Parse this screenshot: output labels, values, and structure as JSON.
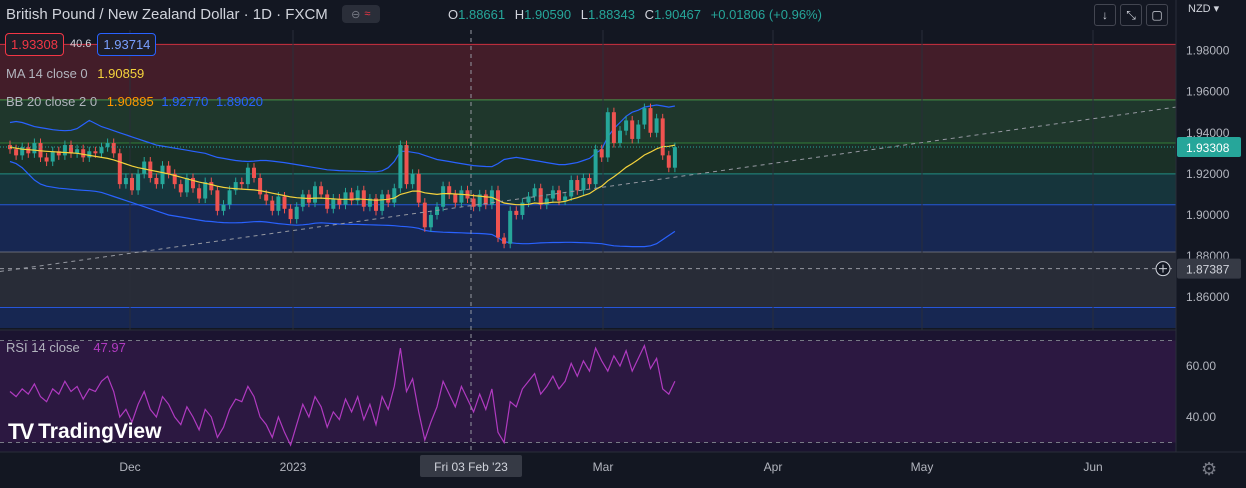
{
  "header": {
    "title": "British Pound / New Zealand Dollar · 1D · FXCM",
    "toggle_icon": "wave-icon",
    "ohlc": {
      "o_label": "O",
      "o": "1.88661",
      "h_label": "H",
      "h": "1.90590",
      "l_label": "L",
      "l": "1.88343",
      "c_label": "C",
      "c": "1.90467",
      "change": "+0.01806 (+0.96%)"
    }
  },
  "spread": {
    "bid": "1.93308",
    "spread": "40.6",
    "ask": "1.93714"
  },
  "indicators": {
    "ma": {
      "name": "MA 14 close 0",
      "value": "1.90859"
    },
    "bb": {
      "name": "BB 20 close 2 0",
      "basis": "1.90895",
      "upper": "1.92770",
      "lower": "1.89020"
    },
    "rsi": {
      "name": "RSI 14 close",
      "value": "47.97"
    }
  },
  "toolbar": {
    "down_icon": "↓",
    "expand_icon": "⤡",
    "fullscreen_icon": "▢"
  },
  "currency": "NZD",
  "logo": {
    "mark": "TV",
    "text": "TradingView"
  },
  "crosshair": {
    "date_label": "Fri 03 Feb '23",
    "price_label": "1.87387",
    "add_icon": "plus-circle-icon"
  },
  "current_price_label": "1.93308",
  "colors": {
    "up": "#26a69a",
    "down": "#ef5350",
    "ma": "#f5d33c",
    "bb": "#2962ff",
    "rsi": "#b03ac0",
    "bg": "#131722"
  },
  "chart_data": {
    "type": "candlestick",
    "price_ticks": [
      "1.98000",
      "1.96000",
      "1.94000",
      "1.92000",
      "1.90000",
      "1.88000",
      "1.86000"
    ],
    "rsi_ticks": [
      "60.00",
      "40.00"
    ],
    "x_ticks": [
      "Dec",
      "2023",
      "Mar",
      "Apr",
      "May",
      "Jun"
    ],
    "zones": [
      {
        "from": 1.956,
        "to": 1.983,
        "color": "#f23645"
      },
      {
        "from": 1.935,
        "to": 1.956,
        "color": "#4caf50"
      },
      {
        "from": 1.92,
        "to": 1.935,
        "color": "#388e3c"
      },
      {
        "from": 1.905,
        "to": 1.92,
        "color": "#26a69a"
      },
      {
        "from": 1.882,
        "to": 1.905,
        "color": "#2962ff"
      },
      {
        "from": 1.855,
        "to": 1.882,
        "color": "#787b86"
      },
      {
        "from": 1.845,
        "to": 1.855,
        "color": "#2962ff"
      }
    ],
    "close": [
      1.932,
      1.929,
      1.933,
      1.93,
      1.935,
      1.928,
      1.926,
      1.931,
      1.929,
      1.934,
      1.93,
      1.932,
      1.928,
      1.931,
      1.93,
      1.933,
      1.935,
      1.93,
      1.915,
      1.918,
      1.912,
      1.92,
      1.926,
      1.918,
      1.915,
      1.924,
      1.92,
      1.915,
      1.911,
      1.918,
      1.913,
      1.908,
      1.916,
      1.912,
      1.902,
      1.905,
      1.912,
      1.916,
      1.915,
      1.923,
      1.918,
      1.91,
      1.907,
      1.902,
      1.909,
      1.903,
      1.898,
      1.904,
      1.91,
      1.906,
      1.914,
      1.91,
      1.903,
      1.908,
      1.905,
      1.911,
      1.907,
      1.912,
      1.904,
      1.908,
      1.902,
      1.91,
      1.906,
      1.913,
      1.934,
      1.915,
      1.92,
      1.906,
      1.894,
      1.9,
      1.904,
      1.914,
      1.91,
      1.906,
      1.912,
      1.908,
      1.904,
      1.91,
      1.905,
      1.912,
      1.889,
      1.886,
      1.902,
      1.9,
      1.906,
      1.909,
      1.913,
      1.905,
      1.908,
      1.912,
      1.907,
      1.909,
      1.917,
      1.912,
      1.918,
      1.915,
      1.932,
      1.928,
      1.95,
      1.935,
      1.941,
      1.946,
      1.937,
      1.944,
      1.952,
      1.94,
      1.947,
      1.929,
      1.923,
      1.933
    ],
    "ma": [
      1.933,
      1.9325,
      1.932,
      1.9318,
      1.9315,
      1.9312,
      1.931,
      1.9308,
      1.9306,
      1.9304,
      1.9302,
      1.93,
      1.9295,
      1.929,
      1.9285,
      1.928,
      1.9275,
      1.9268,
      1.9258,
      1.9248,
      1.9238,
      1.923,
      1.9224,
      1.9218,
      1.9212,
      1.9206,
      1.92,
      1.9192,
      1.9184,
      1.9176,
      1.9168,
      1.916,
      1.9154,
      1.9148,
      1.914,
      1.9134,
      1.913,
      1.9128,
      1.9126,
      1.9124,
      1.9122,
      1.9118,
      1.9112,
      1.9106,
      1.91,
      1.9094,
      1.9088,
      1.9084,
      1.9082,
      1.908,
      1.9082,
      1.9082,
      1.908,
      1.9078,
      1.9076,
      1.9076,
      1.9076,
      1.9078,
      1.9076,
      1.9074,
      1.9072,
      1.9074,
      1.9076,
      1.9082,
      1.91,
      1.9108,
      1.9116,
      1.9116,
      1.9108,
      1.9104,
      1.91,
      1.9104,
      1.9104,
      1.9102,
      1.91,
      1.9098,
      1.9094,
      1.9092,
      1.9088,
      1.9086,
      1.9072,
      1.9058,
      1.9054,
      1.905,
      1.905,
      1.9052,
      1.9058,
      1.9056,
      1.9058,
      1.9062,
      1.9062,
      1.9066,
      1.9076,
      1.9084,
      1.9094,
      1.9104,
      1.9124,
      1.914,
      1.9166,
      1.9186,
      1.9208,
      1.9232,
      1.925,
      1.927,
      1.9292,
      1.9306,
      1.9322,
      1.9332,
      1.9334,
      1.934
    ],
    "bb_upper": [
      1.945,
      1.9455,
      1.945,
      1.944,
      1.943,
      1.9425,
      1.942,
      1.9415,
      1.9412,
      1.941,
      1.9412,
      1.942,
      1.944,
      1.946,
      1.9445,
      1.943,
      1.942,
      1.941,
      1.94,
      1.939,
      1.938,
      1.937,
      1.936,
      1.935,
      1.934,
      1.9335,
      1.933,
      1.9325,
      1.932,
      1.9315,
      1.931,
      1.9305,
      1.93,
      1.929,
      1.928,
      1.9275,
      1.927,
      1.9265,
      1.9262,
      1.926,
      1.9262,
      1.9265,
      1.9265,
      1.9262,
      1.9258,
      1.9255,
      1.925,
      1.9245,
      1.924,
      1.9235,
      1.923,
      1.9225,
      1.922,
      1.9218,
      1.9216,
      1.9215,
      1.9214,
      1.9213,
      1.9212,
      1.921,
      1.921,
      1.9215,
      1.923,
      1.926,
      1.931,
      1.931,
      1.9305,
      1.93,
      1.929,
      1.928,
      1.927,
      1.9265,
      1.926,
      1.9255,
      1.925,
      1.9245,
      1.924,
      1.9238,
      1.9236,
      1.9235,
      1.925,
      1.927,
      1.9275,
      1.928,
      1.9275,
      1.927,
      1.9265,
      1.926,
      1.9255,
      1.925,
      1.9245,
      1.9245,
      1.925,
      1.9255,
      1.9265,
      1.9275,
      1.93,
      1.932,
      1.938,
      1.942,
      1.945,
      1.948,
      1.95,
      1.951,
      1.9525,
      1.953,
      1.9535,
      1.953,
      1.9525,
      1.953
    ],
    "bb_lower": [
      1.926,
      1.925,
      1.923,
      1.92,
      1.917,
      1.915,
      1.914,
      1.9135,
      1.913,
      1.9128,
      1.9125,
      1.9122,
      1.912,
      1.9118,
      1.9115,
      1.911,
      1.91,
      1.909,
      1.908,
      1.907,
      1.906,
      1.905,
      1.904,
      1.903,
      1.902,
      1.901,
      1.9,
      1.8995,
      1.899,
      1.8985,
      1.898,
      1.8975,
      1.897,
      1.8968,
      1.8965,
      1.8963,
      1.8962,
      1.8962,
      1.8963,
      1.8965,
      1.8967,
      1.8968,
      1.8966,
      1.8962,
      1.8958,
      1.8955,
      1.8952,
      1.895,
      1.8952,
      1.8955,
      1.896,
      1.8962,
      1.896,
      1.8958,
      1.8956,
      1.8955,
      1.8954,
      1.8954,
      1.8953,
      1.8952,
      1.8951,
      1.895,
      1.8949,
      1.8948,
      1.8945,
      1.8943,
      1.894,
      1.8935,
      1.8925,
      1.892,
      1.8918,
      1.8916,
      1.8915,
      1.8914,
      1.8913,
      1.8912,
      1.8911,
      1.891,
      1.8908,
      1.8905,
      1.889,
      1.887,
      1.8865,
      1.8862,
      1.886,
      1.886,
      1.8862,
      1.8864,
      1.8865,
      1.8866,
      1.8866,
      1.8867,
      1.8867,
      1.8866,
      1.8865,
      1.8864,
      1.8862,
      1.886,
      1.8855,
      1.885,
      1.8848,
      1.8847,
      1.8846,
      1.8846,
      1.8846,
      1.885,
      1.886,
      1.888,
      1.89,
      1.892
    ],
    "rsi": [
      50,
      48,
      51,
      49,
      53,
      48,
      46,
      51,
      49,
      54,
      50,
      52,
      47,
      51,
      50,
      54,
      56,
      50,
      40,
      43,
      38,
      45,
      50,
      43,
      40,
      48,
      45,
      40,
      37,
      44,
      40,
      35,
      43,
      40,
      32,
      36,
      43,
      47,
      46,
      52,
      48,
      40,
      37,
      32,
      40,
      34,
      29,
      37,
      45,
      40,
      48,
      44,
      36,
      42,
      39,
      47,
      42,
      48,
      39,
      45,
      37,
      48,
      43,
      52,
      67,
      50,
      55,
      42,
      31,
      38,
      44,
      54,
      49,
      44,
      52,
      47,
      42,
      49,
      43,
      51,
      34,
      30,
      46,
      44,
      51,
      54,
      57,
      49,
      52,
      56,
      51,
      54,
      61,
      56,
      62,
      58,
      67,
      62,
      58,
      64,
      60,
      66,
      58,
      63,
      68,
      59,
      63,
      51,
      49,
      54
    ]
  }
}
